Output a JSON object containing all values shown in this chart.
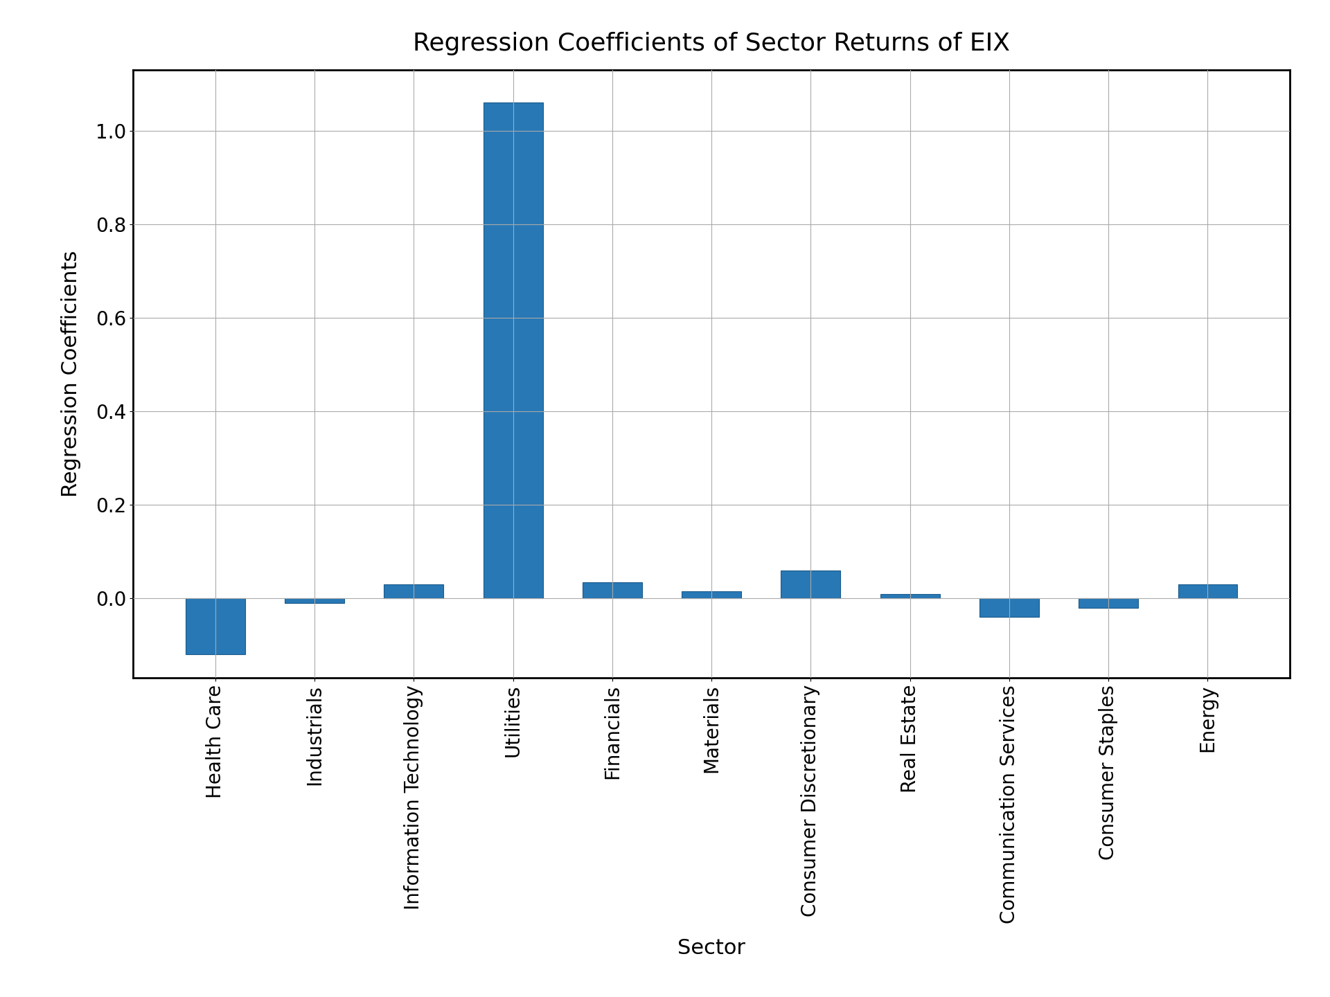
{
  "title": "Regression Coefficients of Sector Returns of EIX",
  "xlabel": "Sector",
  "ylabel": "Regression Coefficients",
  "categories": [
    "Health Care",
    "Industrials",
    "Information Technology",
    "Utilities",
    "Financials",
    "Materials",
    "Consumer Discretionary",
    "Real Estate",
    "Communication Services",
    "Consumer Staples",
    "Energy"
  ],
  "values": [
    -0.12,
    -0.01,
    0.03,
    1.06,
    0.035,
    0.015,
    0.06,
    0.01,
    -0.04,
    -0.02,
    0.03
  ],
  "bar_color": "#2878b5",
  "bar_edgecolor": "#1a5a8a",
  "ylim": [
    -0.17,
    1.13
  ],
  "yticks": [
    0.0,
    0.2,
    0.4,
    0.6,
    0.8,
    1.0
  ],
  "grid_color": "#aaaaaa",
  "background_color": "#ffffff",
  "title_fontsize": 26,
  "label_fontsize": 22,
  "tick_fontsize": 20,
  "figsize": [
    19.2,
    14.4
  ],
  "dpi": 100
}
